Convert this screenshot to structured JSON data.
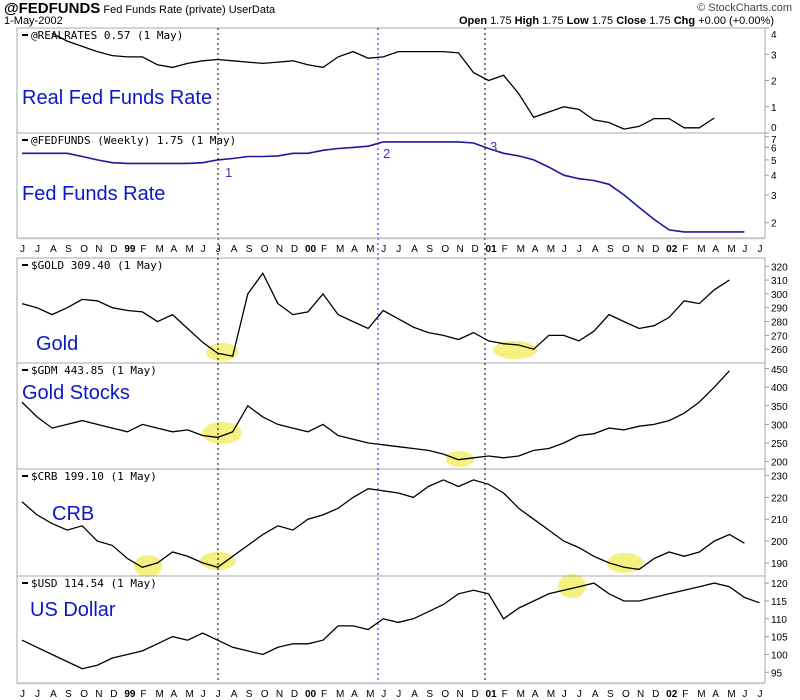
{
  "header": {
    "symbol": "@FEDFUNDS",
    "name": "Fed Funds Rate (private)",
    "source": "UserData",
    "date": "1-May-2002",
    "copyright": "© StockCharts.com",
    "open_label": "Open",
    "open": "1.75",
    "high_label": "High",
    "high": "1.75",
    "low_label": "Low",
    "low": "1.75",
    "close_label": "Close",
    "close": "1.75",
    "chg_label": "Chg",
    "chg": "+0.00 (+0.00%)"
  },
  "chart_data": [
    {
      "type": "line",
      "legend": "@REALRATES 0.57 (1 May)",
      "title": "Real Fed Funds Rate",
      "start": "1998-08",
      "ylim": [
        0,
        4
      ],
      "ticks": [
        0,
        1,
        2,
        3,
        4
      ],
      "log": false,
      "values": [
        3.8,
        3.5,
        3.3,
        3.1,
        2.95,
        2.9,
        2.9,
        2.6,
        2.5,
        2.65,
        2.75,
        2.8,
        2.75,
        2.7,
        2.65,
        2.7,
        2.75,
        2.6,
        2.5,
        2.9,
        3.1,
        2.85,
        2.9,
        3.1,
        3.1,
        3.1,
        3.1,
        3.05,
        2.3,
        2.0,
        2.2,
        1.5,
        0.6,
        0.8,
        1.0,
        0.9,
        0.5,
        0.4,
        0.15,
        0.25,
        0.55,
        0.55,
        0.2,
        0.2,
        0.57
      ]
    },
    {
      "type": "line",
      "legend": "@FEDFUNDS (Weekly) 1.75 (1 May)",
      "title": "Fed Funds Rate",
      "start": "1998-06",
      "ylim": [
        1.6,
        7.4
      ],
      "ticks": [
        2,
        3,
        4,
        5,
        6,
        7
      ],
      "log": true,
      "color": "#1a1a9a",
      "values": [
        5.5,
        5.5,
        5.5,
        5.5,
        5.25,
        5.0,
        4.8,
        4.75,
        4.75,
        4.75,
        4.75,
        4.75,
        4.8,
        5.0,
        5.1,
        5.25,
        5.25,
        5.3,
        5.5,
        5.5,
        5.75,
        5.9,
        6.0,
        6.1,
        6.5,
        6.5,
        6.5,
        6.5,
        6.5,
        6.5,
        6.4,
        5.9,
        5.5,
        5.3,
        5.0,
        4.5,
        4.0,
        3.8,
        3.7,
        3.5,
        3.0,
        2.5,
        2.1,
        1.8,
        1.75,
        1.75,
        1.75,
        1.75,
        1.75
      ],
      "annotations": [
        "1",
        "2",
        "3"
      ]
    },
    {
      "type": "line",
      "legend": "$GOLD 309.40 (1 May)",
      "title": "Gold",
      "start": "1998-06",
      "ylim": [
        250,
        326
      ],
      "ticks": [
        260,
        270,
        280,
        290,
        300,
        310,
        320
      ],
      "log": false,
      "values": [
        293,
        290,
        285,
        290,
        296,
        295,
        290,
        288,
        287,
        280,
        285,
        275,
        265,
        257,
        255,
        300,
        315,
        293,
        285,
        287,
        300,
        285,
        280,
        275,
        288,
        282,
        276,
        272,
        270,
        267,
        272,
        266,
        264,
        263,
        260,
        270,
        270,
        266,
        273,
        285,
        280,
        275,
        277,
        283,
        295,
        293,
        303,
        310
      ]
    },
    {
      "type": "line",
      "legend": "$GDM 443.85 (1 May)",
      "title": "Gold Stocks",
      "start": "1998-06",
      "ylim": [
        180,
        465
      ],
      "ticks": [
        200,
        250,
        300,
        350,
        400,
        450
      ],
      "log": false,
      "values": [
        360,
        320,
        290,
        300,
        310,
        300,
        290,
        280,
        300,
        290,
        280,
        285,
        270,
        265,
        280,
        350,
        320,
        300,
        290,
        280,
        300,
        270,
        260,
        250,
        245,
        240,
        235,
        230,
        220,
        205,
        210,
        215,
        210,
        215,
        230,
        235,
        250,
        270,
        275,
        290,
        285,
        295,
        300,
        310,
        330,
        360,
        400,
        444
      ]
    },
    {
      "type": "line",
      "legend": "$CRB 199.10 (1 May)",
      "title": "CRB",
      "start": "1998-06",
      "ylim": [
        184,
        233
      ],
      "ticks": [
        190,
        200,
        210,
        220,
        230
      ],
      "log": false,
      "values": [
        218,
        212,
        208,
        205,
        207,
        200,
        198,
        192,
        188,
        190,
        195,
        193,
        190,
        188,
        193,
        198,
        203,
        207,
        205,
        210,
        212,
        215,
        220,
        224,
        223,
        222,
        220,
        225,
        228,
        225,
        228,
        226,
        222,
        215,
        210,
        205,
        200,
        197,
        193,
        190,
        188,
        187,
        192,
        195,
        193,
        195,
        200,
        203,
        199
      ]
    },
    {
      "type": "line",
      "legend": "$USD 114.54 (1 May)",
      "title": "US Dollar",
      "start": "1998-06",
      "ylim": [
        92,
        122
      ],
      "ticks": [
        95,
        100,
        105,
        110,
        115,
        120
      ],
      "log": false,
      "values": [
        104,
        102,
        100,
        98,
        96,
        97,
        99,
        100,
        101,
        103,
        105,
        104,
        106,
        104,
        102,
        101,
        100,
        102,
        103,
        103,
        104,
        108,
        108,
        107,
        110,
        109,
        110,
        112,
        114,
        117,
        118,
        117,
        110,
        113,
        115,
        117,
        118,
        119,
        120,
        117,
        115,
        115,
        116,
        117,
        118,
        119,
        120,
        119,
        116,
        114.5
      ]
    }
  ],
  "months": [
    "J",
    "J",
    "A",
    "S",
    "O",
    "N",
    "D",
    "99",
    "F",
    "M",
    "A",
    "M",
    "J",
    "J",
    "A",
    "S",
    "O",
    "N",
    "D",
    "00",
    "F",
    "M",
    "A",
    "M",
    "J",
    "J",
    "A",
    "S",
    "O",
    "N",
    "D",
    "01",
    "F",
    "M",
    "A",
    "M",
    "J",
    "J",
    "A",
    "S",
    "O",
    "N",
    "D",
    "02",
    "F",
    "M",
    "A",
    "M",
    "J",
    "J"
  ],
  "colors": {
    "line": "#000000",
    "title": "#0a18c8",
    "highlight": "#f2ef6a",
    "grid": "#1a1ad0"
  }
}
